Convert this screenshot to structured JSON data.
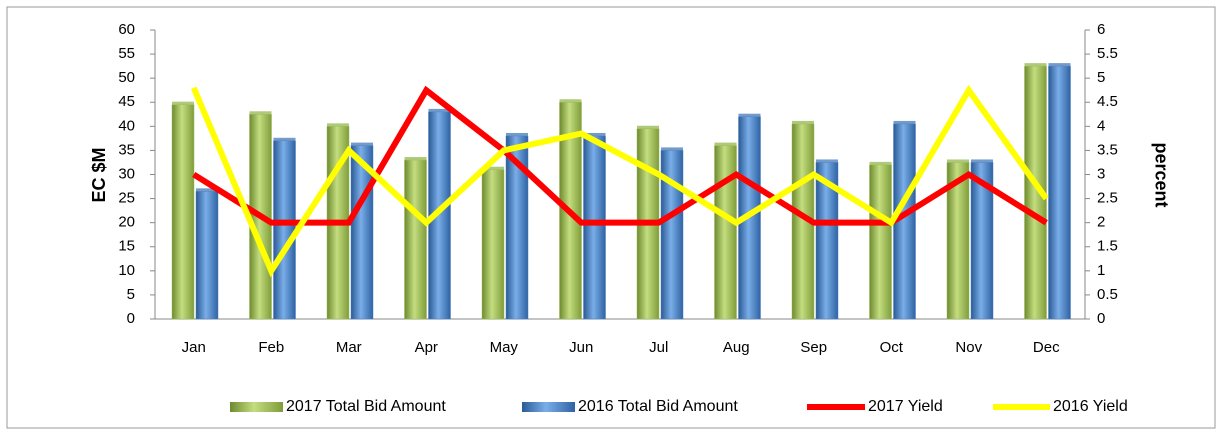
{
  "chart_data": {
    "type": "bar_line",
    "y_label": "EC $M",
    "y2_label": "percent",
    "categories": [
      "Jan",
      "Feb",
      "Mar",
      "Apr",
      "May",
      "Jun",
      "Jul",
      "Aug",
      "Sep",
      "Oct",
      "Nov",
      "Dec"
    ],
    "series": [
      {
        "name": "2017 Total Bid Amount",
        "type": "bar",
        "color": "#9bbb59",
        "values": [
          44.5,
          42.5,
          40,
          33,
          31,
          45,
          39.5,
          36,
          40.5,
          32,
          32.5,
          52.5
        ]
      },
      {
        "name": "2016 Total Bid Amount",
        "type": "bar",
        "color": "#4f81bd",
        "values": [
          26.5,
          37,
          36,
          43,
          38,
          38,
          35,
          42,
          32.5,
          40.5,
          32.5,
          52.5
        ]
      },
      {
        "name": "2017 Yield",
        "type": "line",
        "axis": "y2",
        "color": "#ff0000",
        "values": [
          3,
          2,
          2,
          4.75,
          3.5,
          2,
          2,
          3,
          2,
          2,
          3,
          2
        ]
      },
      {
        "name": "2016 Yield",
        "type": "line",
        "axis": "y2",
        "color": "#ffff00",
        "values": [
          4.8,
          1,
          3.5,
          2,
          3.5,
          3.85,
          3,
          2,
          3,
          2,
          4.75,
          2.5
        ]
      }
    ],
    "ylim": [
      0,
      60
    ],
    "yticks": [
      0,
      5,
      10,
      15,
      20,
      25,
      30,
      35,
      40,
      45,
      50,
      55,
      60
    ],
    "y2lim": [
      0,
      6
    ],
    "y2ticks": [
      0,
      0.5,
      1,
      1.5,
      2,
      2.5,
      3,
      3.5,
      4,
      4.5,
      5,
      5.5,
      6
    ],
    "grid": false,
    "legend": "bottom"
  }
}
